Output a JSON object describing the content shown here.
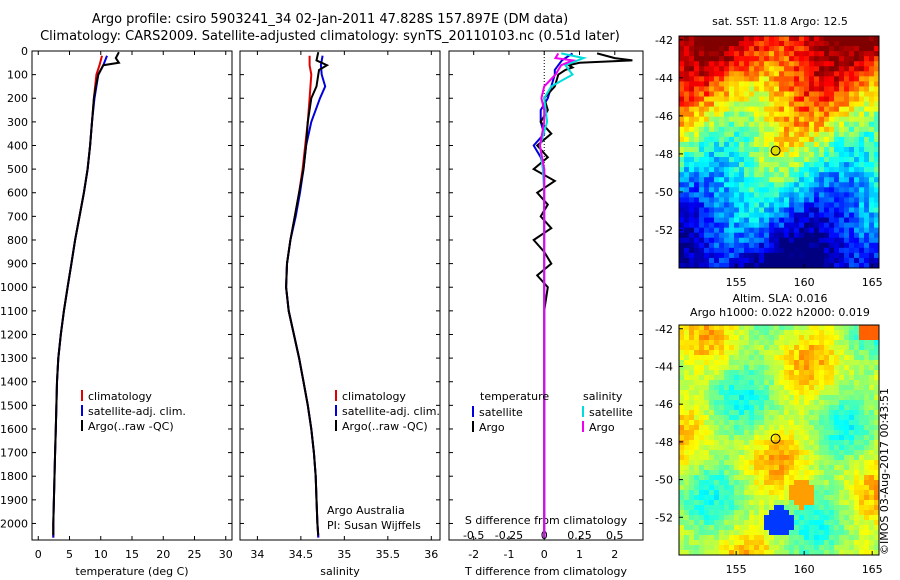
{
  "title_line1": "Argo profile: csiro 5903241_34 02-Jan-2011 47.828S 157.897E (DM data)",
  "title_line2": "Climatology: CARS2009. Satellite-adjusted climatology: synTS_20110103.nc (0.51d later)",
  "watermark": "©IMOS 03-Aug-2017 00:43:51",
  "colors": {
    "climatology": "#e00000",
    "satellite": "#0000dd",
    "argo": "#000000",
    "sal_satellite": "#00dddd",
    "sal_argo": "#ee00ee"
  },
  "chart_data": [
    {
      "type": "line",
      "xlabel": "temperature (deg C)",
      "xlim": [
        -1,
        31
      ],
      "xticks": [
        0,
        5,
        10,
        15,
        20,
        25,
        30
      ],
      "ylim": [
        2070,
        0
      ],
      "yticks": [
        0,
        100,
        200,
        300,
        400,
        500,
        600,
        700,
        800,
        900,
        1000,
        1100,
        1200,
        1300,
        1400,
        1500,
        1600,
        1700,
        1800,
        1900,
        2000
      ],
      "legend": [
        "climatology",
        "satellite-adj. clim.",
        "Argo(..raw -QC)"
      ],
      "series": [
        {
          "key": "climatology",
          "depth": [
            20,
            60,
            100,
            200,
            300,
            400,
            500,
            600,
            700,
            800,
            900,
            1000,
            1100,
            1200,
            1300,
            1400,
            1500,
            1600,
            1700,
            1800,
            1900,
            2000,
            2060
          ],
          "values": [
            10.2,
            9.8,
            9.3,
            8.9,
            8.6,
            8.3,
            7.9,
            7.3,
            6.6,
            5.9,
            5.3,
            4.7,
            4.1,
            3.6,
            3.2,
            3.0,
            2.9,
            2.8,
            2.7,
            2.6,
            2.5,
            2.4,
            2.4
          ]
        },
        {
          "key": "satellite",
          "depth": [
            20,
            60,
            100,
            200,
            300,
            400,
            500,
            600,
            700,
            800,
            900,
            1000,
            1100,
            1200,
            1300,
            1400,
            1500,
            1600,
            1700,
            1800,
            1900,
            2000,
            2060
          ],
          "values": [
            11.0,
            10.4,
            9.6,
            9.0,
            8.6,
            8.3,
            7.9,
            7.3,
            6.6,
            5.9,
            5.3,
            4.7,
            4.1,
            3.6,
            3.2,
            3.0,
            2.9,
            2.8,
            2.7,
            2.6,
            2.5,
            2.4,
            2.4
          ]
        },
        {
          "key": "argo",
          "depth": [
            5,
            30,
            50,
            60,
            80,
            100,
            150,
            200,
            300,
            400,
            500,
            600,
            700,
            800,
            900,
            1000,
            1100,
            1200,
            1300,
            1400,
            1500,
            1600,
            1700,
            1800,
            1900,
            2000,
            2050
          ],
          "values": [
            12.9,
            12.4,
            12.9,
            10.4,
            10.0,
            9.6,
            9.2,
            8.9,
            8.6,
            8.3,
            7.9,
            7.3,
            6.6,
            5.9,
            5.3,
            4.7,
            4.1,
            3.6,
            3.2,
            3.0,
            2.9,
            2.8,
            2.7,
            2.6,
            2.5,
            2.4,
            2.4
          ]
        }
      ]
    },
    {
      "type": "line",
      "xlabel": "salinity",
      "xlim": [
        33.8,
        36.1
      ],
      "xticks": [
        34,
        34.5,
        35,
        35.5,
        36
      ],
      "ylim": [
        2070,
        0
      ],
      "legend": [
        "climatology",
        "satellite-adj. clim.",
        "Argo(..raw -QC)"
      ],
      "annotation": [
        "Argo Australia",
        "PI: Susan Wijffels"
      ],
      "series": [
        {
          "key": "climatology",
          "depth": [
            20,
            60,
            100,
            200,
            300,
            400,
            500,
            600,
            700,
            800,
            900,
            1000,
            1100,
            1200,
            1300,
            1400,
            1500,
            1600,
            1700,
            1800,
            1900,
            2000,
            2060
          ],
          "values": [
            34.6,
            34.6,
            34.62,
            34.6,
            34.58,
            34.55,
            34.52,
            34.48,
            34.43,
            34.38,
            34.34,
            34.33,
            34.36,
            34.42,
            34.48,
            34.53,
            34.58,
            34.62,
            34.65,
            34.67,
            34.68,
            34.69,
            34.7
          ]
        },
        {
          "key": "satellite",
          "depth": [
            20,
            60,
            100,
            150,
            200,
            300,
            400,
            500,
            600,
            700,
            800,
            900,
            1000,
            1100,
            1200,
            1300,
            1400,
            1500,
            1600,
            1700,
            1800,
            1900,
            2000,
            2060
          ],
          "values": [
            34.75,
            34.73,
            34.74,
            34.78,
            34.72,
            34.62,
            34.56,
            34.53,
            34.49,
            34.44,
            34.38,
            34.34,
            34.33,
            34.36,
            34.42,
            34.48,
            34.53,
            34.58,
            34.62,
            34.65,
            34.67,
            34.68,
            34.69,
            34.7
          ]
        },
        {
          "key": "argo",
          "depth": [
            5,
            40,
            60,
            80,
            100,
            150,
            200,
            300,
            400,
            500,
            600,
            700,
            800,
            900,
            1000,
            1100,
            1200,
            1300,
            1400,
            1500,
            1600,
            1700,
            1800,
            1900,
            2000,
            2050
          ],
          "values": [
            34.7,
            34.68,
            34.8,
            34.71,
            34.7,
            34.68,
            34.62,
            34.58,
            34.56,
            34.53,
            34.48,
            34.43,
            34.38,
            34.34,
            34.33,
            34.36,
            34.42,
            34.48,
            34.53,
            34.58,
            34.62,
            34.65,
            34.67,
            34.68,
            34.69,
            34.7
          ]
        }
      ]
    },
    {
      "type": "line",
      "xlabel": "T difference from climatology",
      "top_xlabel": "S difference from climatology",
      "xlim": [
        -2.7,
        2.8
      ],
      "xticks": [
        -2,
        -1,
        0,
        1,
        2
      ],
      "top_xticks": [
        -0.5,
        -0.25,
        0,
        0.25,
        0.5
      ],
      "ylim": [
        2070,
        0
      ],
      "legend_groups": [
        {
          "heading": "temperature",
          "items": [
            "satellite",
            "Argo"
          ]
        },
        {
          "heading": "salinity",
          "items": [
            "satellite",
            "Argo"
          ]
        }
      ],
      "series": [
        {
          "key": "t_satellite",
          "depth": [
            10,
            40,
            60,
            80,
            100,
            150,
            200,
            250,
            300,
            350,
            400,
            450,
            500,
            550,
            600,
            700,
            800,
            900,
            1000,
            1200,
            1500,
            2000,
            2060
          ],
          "values": [
            0.8,
            0.5,
            0.4,
            0.3,
            0.3,
            0.2,
            0.1,
            -0.1,
            -0.1,
            0.0,
            -0.3,
            -0.1,
            0.0,
            0.0,
            0.0,
            0.0,
            0.0,
            0.0,
            0.0,
            0.0,
            0.0,
            0.0,
            0.0
          ]
        },
        {
          "key": "t_argo",
          "depth": [
            10,
            30,
            40,
            50,
            60,
            70,
            80,
            100,
            150,
            200,
            250,
            300,
            350,
            400,
            450,
            500,
            550,
            600,
            650,
            700,
            750,
            800,
            850,
            900,
            950,
            1000,
            1100,
            1200,
            1500,
            2000,
            2060
          ],
          "values": [
            1.5,
            2.0,
            2.5,
            1.0,
            0.7,
            0.8,
            0.6,
            0.4,
            0.3,
            0.0,
            0.1,
            -0.1,
            0.2,
            -0.2,
            0.1,
            -0.3,
            0.3,
            -0.2,
            0.1,
            -0.1,
            0.2,
            -0.3,
            0.0,
            0.2,
            -0.2,
            0.1,
            0.0,
            0.0,
            0.0,
            0.0,
            0.0
          ]
        },
        {
          "key": "s_satellite",
          "depth": [
            10,
            30,
            60,
            100,
            150,
            200,
            300,
            400,
            500,
            600,
            800,
            1000,
            1500,
            2000,
            2060
          ],
          "values": [
            0.12,
            0.28,
            0.15,
            0.2,
            0.05,
            0.0,
            0.02,
            -0.03,
            -0.01,
            0.0,
            0.0,
            0.0,
            0.0,
            0.0,
            0.0
          ]
        },
        {
          "key": "s_argo",
          "depth": [
            10,
            30,
            40,
            60,
            80,
            100,
            150,
            200,
            250,
            300,
            400,
            500,
            600,
            800,
            1000,
            1500,
            2000,
            2060
          ],
          "values": [
            0.1,
            0.08,
            0.2,
            0.12,
            0.1,
            0.08,
            0.0,
            -0.02,
            0.0,
            0.0,
            -0.03,
            0.0,
            0.0,
            0.0,
            0.0,
            0.0,
            0.0,
            0.0
          ]
        }
      ]
    },
    {
      "type": "heatmap",
      "title": "sat. SST: 11.8  Argo: 12.5",
      "xlim": [
        150.8,
        165.5
      ],
      "ylim": [
        -54,
        -41.8
      ],
      "xticks": [
        155,
        160,
        165
      ],
      "yticks": [
        -42,
        -44,
        -46,
        -48,
        -50,
        -52
      ],
      "marker": {
        "lon": 157.9,
        "lat": -47.83
      }
    },
    {
      "type": "heatmap",
      "title_lines": [
        "Altim. SLA: 0.016",
        "Argo h1000: 0.022 h2000: 0.019"
      ],
      "xlim": [
        150.8,
        165.5
      ],
      "ylim": [
        -54,
        -41.8
      ],
      "xticks": [
        155,
        160,
        165
      ],
      "yticks": [
        -42,
        -44,
        -46,
        -48,
        -50,
        -52
      ],
      "marker": {
        "lon": 157.9,
        "lat": -47.83
      }
    }
  ]
}
